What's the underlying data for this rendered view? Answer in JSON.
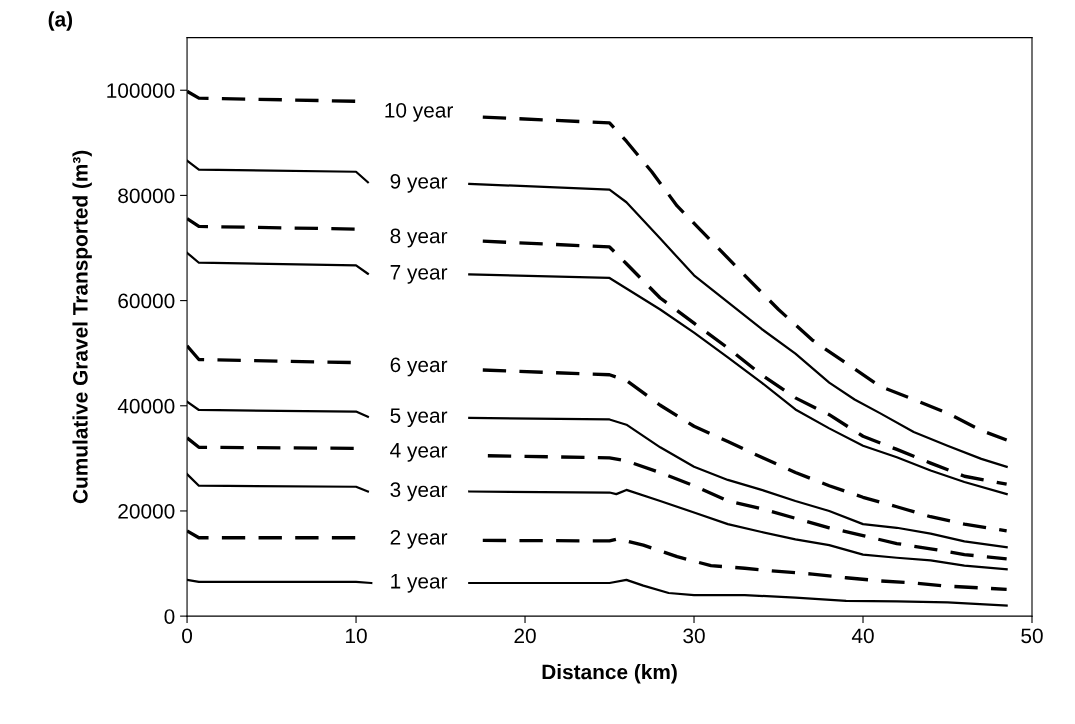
{
  "chart_data": {
    "type": "line",
    "title": "(a)",
    "xlabel": "Distance (km)",
    "ylabel": "Cumulative Gravel Transported (m³)",
    "xlim": [
      0,
      50
    ],
    "xticks": [
      0,
      10,
      20,
      30,
      40,
      50
    ],
    "ylim": [
      0,
      110000
    ],
    "yticks": [
      0,
      20000,
      40000,
      60000,
      80000,
      100000
    ],
    "grid": false,
    "legend": false,
    "marker": "none",
    "series": [
      {
        "name": "1 year",
        "color": "#000000",
        "line_style": "solid",
        "x": [
          0,
          0.7,
          10,
          10.9,
          13.7,
          16.7,
          25,
          26,
          27,
          28.5,
          30,
          33,
          36,
          39,
          42,
          45,
          48.5
        ],
        "values": [
          6900,
          6500,
          6500,
          6300,
          null,
          6300,
          6300,
          6900,
          5800,
          4400,
          4000,
          4000,
          3500,
          2900,
          2800,
          2600,
          2000
        ]
      },
      {
        "name": "2 year",
        "color": "#000000",
        "line_style": "dashed",
        "x": [
          0,
          0.7,
          10,
          13.7,
          17.5,
          25,
          25.5,
          27,
          29,
          31,
          33,
          35,
          37,
          39,
          41,
          43,
          45,
          48.5
        ],
        "values": [
          16200,
          14900,
          14900,
          null,
          14400,
          14300,
          14700,
          13500,
          11300,
          9600,
          9100,
          8500,
          8000,
          7300,
          6700,
          6300,
          5700,
          5100
        ]
      },
      {
        "name": "3 year",
        "color": "#000000",
        "line_style": "solid",
        "x": [
          0,
          0.7,
          10,
          10.7,
          13.7,
          16.7,
          25,
          25.4,
          26,
          28,
          30,
          32,
          34,
          36,
          38,
          40,
          42,
          44,
          46,
          48.5
        ],
        "values": [
          27000,
          24800,
          24600,
          23700,
          null,
          23700,
          23500,
          23200,
          24000,
          21900,
          19700,
          17500,
          16000,
          14600,
          13500,
          11700,
          11100,
          10600,
          9600,
          8900
        ]
      },
      {
        "name": "4 year",
        "color": "#000000",
        "line_style": "dashed",
        "x": [
          0,
          0.7,
          10,
          13.7,
          17.8,
          25,
          26,
          28,
          30,
          32,
          34,
          36,
          38,
          40,
          42,
          44,
          46,
          48.5
        ],
        "values": [
          33900,
          32100,
          31900,
          null,
          30500,
          30100,
          29500,
          27300,
          24800,
          21900,
          20400,
          18600,
          16800,
          15300,
          13800,
          12800,
          11700,
          10900
        ]
      },
      {
        "name": "5 year",
        "color": "#000000",
        "line_style": "solid",
        "x": [
          0,
          0.7,
          10,
          10.7,
          13.7,
          16.7,
          25,
          26,
          28,
          30,
          32,
          34,
          36,
          38,
          40,
          42,
          44,
          46,
          48.5
        ],
        "values": [
          40800,
          39200,
          38900,
          37900,
          null,
          37700,
          37400,
          36400,
          32100,
          28400,
          25900,
          24000,
          21900,
          20000,
          17500,
          16800,
          15700,
          14200,
          13100
        ]
      },
      {
        "name": "6 year",
        "color": "#000000",
        "line_style": "dashed",
        "x": [
          0,
          0.7,
          10,
          10.2,
          13.7,
          17.5,
          25,
          26,
          28,
          30,
          32,
          34,
          36,
          38,
          40,
          42,
          44,
          46,
          48.5
        ],
        "values": [
          51400,
          48800,
          48200,
          48100,
          null,
          46800,
          45900,
          44800,
          40100,
          36100,
          33200,
          30200,
          27300,
          24800,
          22600,
          20800,
          18900,
          17500,
          16200
        ]
      },
      {
        "name": "7 year",
        "color": "#000000",
        "line_style": "solid",
        "x": [
          0,
          0.7,
          10,
          10.7,
          13.7,
          16.7,
          25,
          26,
          28,
          30,
          32,
          34,
          36,
          38,
          40,
          42,
          44,
          46,
          48.5
        ],
        "values": [
          69100,
          67200,
          66700,
          65100,
          null,
          65000,
          64300,
          62300,
          58300,
          53900,
          49200,
          44400,
          39300,
          35700,
          32400,
          30200,
          27700,
          25500,
          23200
        ]
      },
      {
        "name": "8 year",
        "color": "#000000",
        "line_style": "dashed",
        "x": [
          0,
          0.7,
          10,
          10.5,
          13.7,
          17.5,
          25,
          26,
          28,
          30,
          32,
          34,
          36,
          38,
          40,
          42,
          44,
          46,
          48.5
        ],
        "values": [
          75600,
          74100,
          73600,
          72600,
          null,
          71300,
          70200,
          67000,
          60500,
          55700,
          51000,
          45900,
          41500,
          38300,
          34200,
          31700,
          29100,
          26600,
          25100
        ]
      },
      {
        "name": "9 year",
        "color": "#000000",
        "line_style": "solid",
        "x": [
          0,
          0.7,
          10,
          10.7,
          13.7,
          16.7,
          25,
          26,
          28,
          30,
          32,
          34,
          36,
          38,
          39.5,
          41,
          43,
          45,
          47,
          48.5
        ],
        "values": [
          86600,
          84900,
          84500,
          82500,
          null,
          82200,
          81100,
          78700,
          71800,
          64800,
          59700,
          54600,
          49900,
          44400,
          41200,
          38600,
          35000,
          32400,
          29900,
          28400
        ]
      },
      {
        "name": "10 year",
        "color": "#000000",
        "line_style": "dashed",
        "x": [
          0,
          0.7,
          10,
          10.5,
          13.7,
          17.5,
          25,
          26,
          27.5,
          29,
          31,
          33,
          35,
          37,
          39,
          41,
          43,
          45,
          47,
          48.5
        ],
        "values": [
          99800,
          98500,
          97900,
          96800,
          null,
          94900,
          93800,
          90300,
          84500,
          78000,
          71400,
          64800,
          58300,
          52500,
          48100,
          43700,
          41200,
          38600,
          35300,
          33500
        ]
      }
    ]
  }
}
